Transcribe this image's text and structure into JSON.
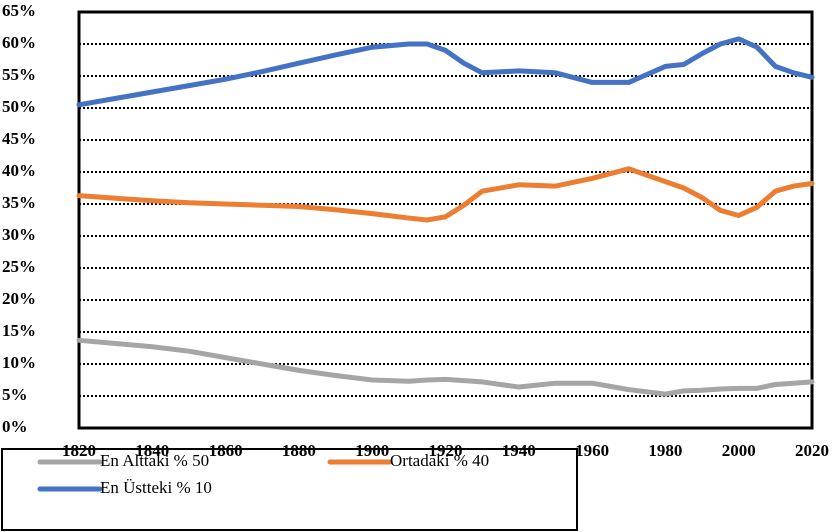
{
  "chart_data": {
    "type": "line",
    "x": [
      1820,
      1830,
      1840,
      1850,
      1860,
      1870,
      1880,
      1890,
      1900,
      1910,
      1915,
      1920,
      1925,
      1930,
      1940,
      1950,
      1960,
      1970,
      1980,
      1985,
      1990,
      1995,
      2000,
      2005,
      2010,
      2015,
      2020
    ],
    "series": [
      {
        "name": "En Alttaki % 50",
        "color": "#a5a5a5",
        "values": [
          13.7,
          13.2,
          12.7,
          12,
          11,
          10,
          9,
          8.2,
          7.5,
          7.3,
          7.5,
          7.6,
          7.4,
          7.2,
          6.4,
          7,
          7,
          6,
          5.3,
          5.8,
          5.9,
          6.1,
          6.2,
          6.2,
          6.8,
          7,
          7.2
        ]
      },
      {
        "name": "Ortadaki % 40",
        "color": "#ed7d31",
        "values": [
          36.3,
          35.9,
          35.5,
          35.2,
          35,
          34.8,
          34.6,
          34.1,
          33.5,
          32.8,
          32.5,
          33,
          34.8,
          37,
          38,
          37.8,
          39,
          40.5,
          38.5,
          37.5,
          36,
          34,
          33.2,
          34.5,
          37,
          37.8,
          38.2
        ]
      },
      {
        "name": "En Üstteki % 10",
        "color": "#4472c4",
        "values": [
          50.5,
          51.5,
          52.5,
          53.5,
          54.5,
          55.7,
          57,
          58.3,
          59.5,
          60,
          60,
          59,
          57,
          55.5,
          55.8,
          55.5,
          54,
          54,
          56.5,
          56.8,
          58.5,
          60,
          60.8,
          59.5,
          56.5,
          55.5,
          54.8
        ]
      }
    ],
    "xlim": [
      1820,
      2020
    ],
    "xticks": [
      1820,
      1840,
      1860,
      1880,
      1900,
      1920,
      1940,
      1960,
      1980,
      2000,
      2020
    ],
    "ylim": [
      0,
      65
    ],
    "yticks": [
      {
        "value": 0,
        "label": "0%"
      },
      {
        "value": 5,
        "label": "5%"
      },
      {
        "value": 10,
        "label": "10%"
      },
      {
        "value": 15,
        "label": "15%"
      },
      {
        "value": 20,
        "label": "20%"
      },
      {
        "value": 25,
        "label": "25%"
      },
      {
        "value": 30,
        "label": "30%"
      },
      {
        "value": 35,
        "label": "35%"
      },
      {
        "value": 40,
        "label": "40%"
      },
      {
        "value": 45,
        "label": "45%"
      },
      {
        "value": 50,
        "label": "50%"
      },
      {
        "value": 55,
        "label": "55%"
      },
      {
        "value": 60,
        "label": "60%"
      },
      {
        "value": 65,
        "label": "65%"
      }
    ],
    "grid": true,
    "legend": "bottom"
  }
}
